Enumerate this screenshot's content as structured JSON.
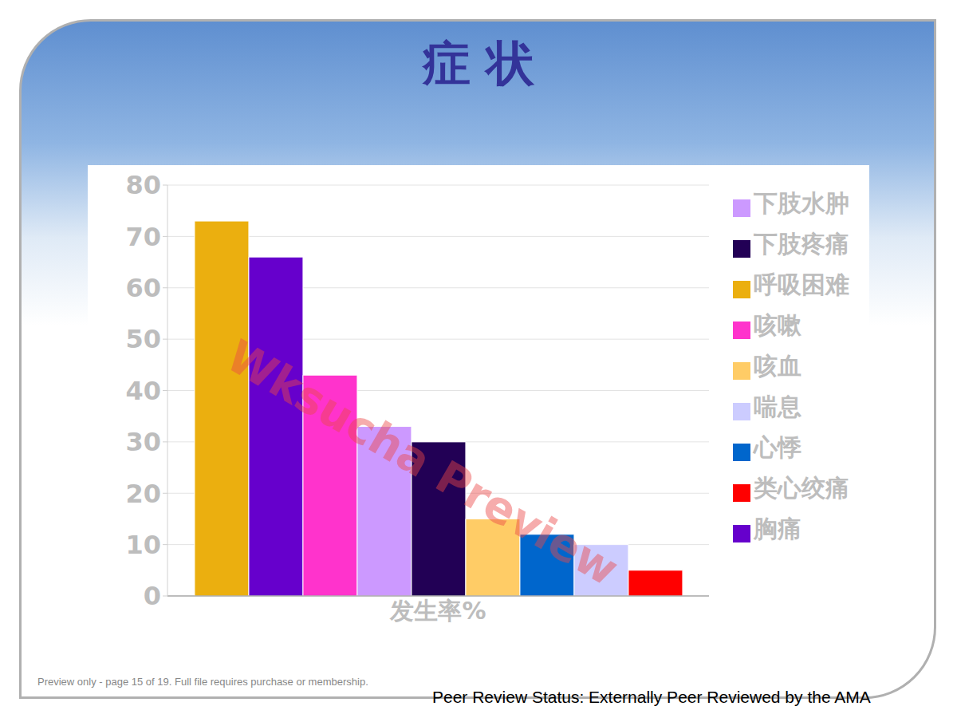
{
  "chart_data": {
    "type": "bar",
    "title": "症 状",
    "categories": [
      "发生率%"
    ],
    "series": [
      {
        "name": "呼吸困难",
        "color": "#EBAF0F",
        "values": [
          73
        ]
      },
      {
        "name": "胸痛",
        "color": "#6600CC",
        "values": [
          66
        ]
      },
      {
        "name": "咳嗽",
        "color": "#FF33CC",
        "values": [
          43
        ]
      },
      {
        "name": "下肢水肿",
        "color": "#CC99FF",
        "values": [
          33
        ]
      },
      {
        "name": "下肢疼痛",
        "color": "#220055",
        "values": [
          30
        ]
      },
      {
        "name": "咳血",
        "color": "#FFCC66",
        "values": [
          15
        ]
      },
      {
        "name": "心悸",
        "color": "#0066CC",
        "values": [
          12
        ]
      },
      {
        "name": "喘息",
        "color": "#CCCCFF",
        "values": [
          10
        ]
      },
      {
        "name": "类心绞痛",
        "color": "#FF0000",
        "values": [
          5
        ]
      }
    ],
    "ylim": [
      0,
      80
    ],
    "yticks": [
      0,
      10,
      20,
      30,
      40,
      50,
      60,
      70,
      80
    ],
    "grid": true,
    "legend": "right",
    "annotations": [
      "Wksucha Preview",
      "Preview only - page 15 of 19. Full file requires purchase or membership.",
      "Peer Review Status: Externally Peer Reviewed by the AMA"
    ]
  }
}
